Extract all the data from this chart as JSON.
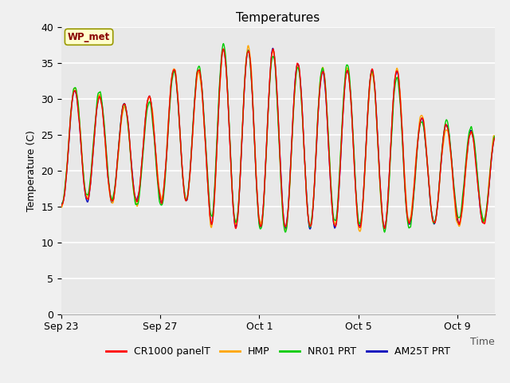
{
  "title": "Temperatures",
  "ylabel": "Temperature (C)",
  "xlabel": "Time",
  "ylim": [
    0,
    40
  ],
  "yticks": [
    0,
    5,
    10,
    15,
    20,
    25,
    30,
    35,
    40
  ],
  "xtick_labels": [
    "Sep 23",
    "Sep 27",
    "Oct 1",
    "Oct 5",
    "Oct 9"
  ],
  "xtick_positions": [
    0,
    4,
    8,
    12,
    16
  ],
  "n_days": 17.5,
  "colors": {
    "CR1000 panelT": "#ff0000",
    "HMP": "#ffa500",
    "NR01 PRT": "#00cc00",
    "AM25T PRT": "#0000bb"
  },
  "annotation_text": "WP_met",
  "annotation_box_color": "#ffffcc",
  "annotation_text_color": "#880000",
  "annotation_border_color": "#999900",
  "plot_bg_color": "#e8e8e8",
  "fig_bg_color": "#f0f0f0",
  "grid_color": "#ffffff",
  "title_fontsize": 11,
  "label_fontsize": 9,
  "tick_fontsize": 9,
  "legend_fontsize": 9
}
